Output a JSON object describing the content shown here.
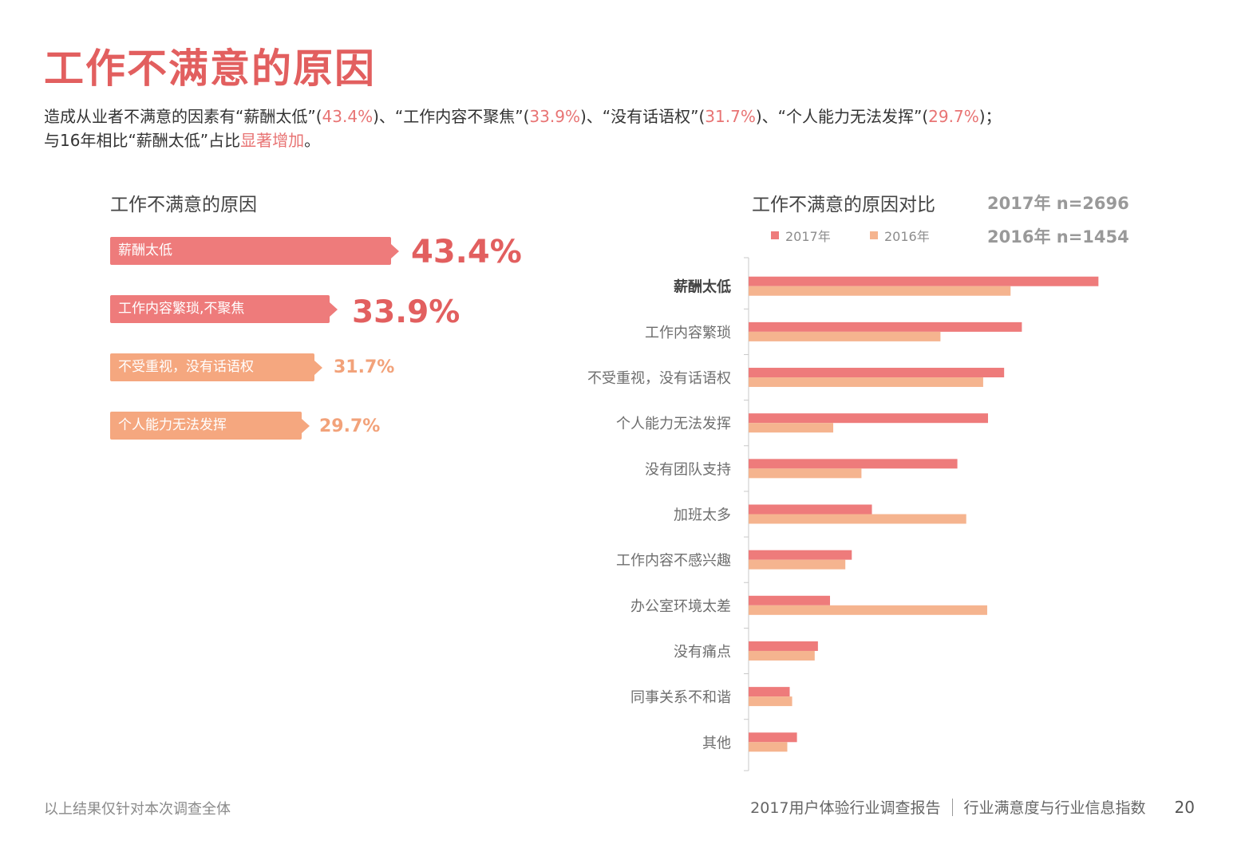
{
  "title": "工作不满意的原因",
  "intro": {
    "p1": "造成从业者不满意的因素有“薪酬太低”(",
    "v1": "43.4%",
    "p2": ")、“工作内容不聚焦”(",
    "v2": "33.9%",
    "p3": ")、“没有话语权”(",
    "v3": "31.7%",
    "p4": ")、“个人能力无法发挥”(",
    "v4": "29.7%",
    "p5": ")；",
    "line2": "与16年相比“薪酬太低”占比",
    "line2_hl": "显著增加",
    "line2_end": "。"
  },
  "left_chart": {
    "title": "工作不满意的原因",
    "items": [
      {
        "label": "薪酬太低",
        "value": "43.4%",
        "color": "#ee7b7b",
        "text_color": "#e25f5f"
      },
      {
        "label": "工作内容繁琐,不聚焦",
        "value": "33.9%",
        "color": "#ee7b7b",
        "text_color": "#e25f5f"
      },
      {
        "label": "不受重视，没有话语权",
        "value": "31.7%",
        "color": "#f5a77f",
        "text_color": "#f2a27a"
      },
      {
        "label": "个人能力无法发挥",
        "value": "29.7%",
        "color": "#f5a77f",
        "text_color": "#f2a27a"
      }
    ]
  },
  "right_chart": {
    "title": "工作不满意的原因对比",
    "sample_2017": "2017年 n=2696",
    "sample_2016": "2016年 n=1454"
  },
  "chart_data": {
    "type": "bar",
    "orientation": "horizontal",
    "title": "工作不满意的原因对比",
    "categories": [
      "薪酬太低",
      "工作内容繁琐",
      "不受重视，没有话语权",
      "个人能力无法发挥",
      "没有团队支持",
      "加班太多",
      "工作内容不感兴趣",
      "办公室环境太差",
      "没有痛点",
      "同事关系不和谐",
      "其他"
    ],
    "series": [
      {
        "name": "2017年",
        "color": "#ee7b7b",
        "values": [
          43.4,
          33.9,
          31.7,
          29.7,
          25.9,
          15.3,
          12.8,
          10.1,
          8.6,
          5.1,
          6.0
        ]
      },
      {
        "name": "2016年",
        "color": "#f5b48f",
        "values": [
          32.5,
          23.8,
          29.1,
          10.5,
          14.0,
          27.0,
          12.0,
          29.6,
          8.2,
          5.4,
          4.8
        ]
      }
    ],
    "xlim": [
      0,
      50
    ],
    "grid": false,
    "legend": "top"
  },
  "footer": {
    "note": "以上结果仅针对本次调查全体",
    "report": "2017用户体验行业调查报告",
    "section": "行业满意度与行业信息指数",
    "page": "20"
  }
}
